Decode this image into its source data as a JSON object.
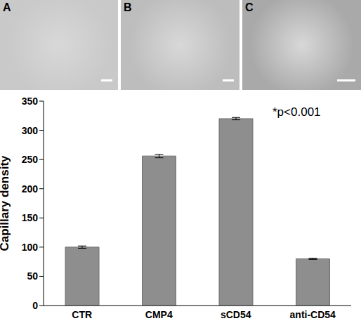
{
  "panels": [
    {
      "label": "A"
    },
    {
      "label": "B"
    },
    {
      "label": "C"
    }
  ],
  "chart_data": {
    "type": "bar",
    "categories": [
      "CTR",
      "CMP4",
      "sCD54",
      "anti-CD54"
    ],
    "values": [
      100,
      256,
      320,
      80
    ],
    "errors": [
      2,
      3,
      2,
      1
    ],
    "color": "#8e8e8e",
    "ylim": [
      0,
      350
    ],
    "yticks": [
      0,
      50,
      100,
      150,
      200,
      250,
      300,
      350
    ],
    "y_label": "Capillary density",
    "annotation": "*p<0.001",
    "grid": false
  }
}
